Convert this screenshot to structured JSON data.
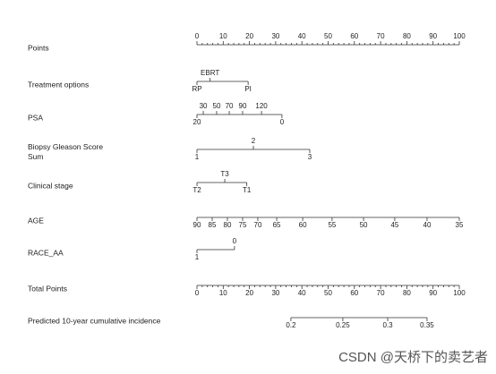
{
  "chart_data": {
    "type": "nomogram",
    "xlim": [
      0,
      100
    ],
    "axes": [
      {
        "label": [
          "Points"
        ],
        "label_side": "above",
        "ticks": [
          0,
          10,
          20,
          30,
          40,
          50,
          60,
          70,
          80,
          90,
          100
        ],
        "minor_divisions": 5
      },
      {
        "label": [
          "Treatment options"
        ],
        "label_side": "below",
        "ticks": [
          {
            "label": "RP",
            "points": 0
          },
          {
            "label": "EBRT",
            "points": 5,
            "side": "above"
          },
          {
            "label": "PI",
            "points": 19.5
          }
        ]
      },
      {
        "label": [
          "PSA"
        ],
        "label_side": "below",
        "ticks": [
          {
            "value": 20,
            "points": 0
          },
          {
            "value": 30,
            "points": 2.4,
            "side": "above"
          },
          {
            "value": 50,
            "points": 7.5,
            "side": "above"
          },
          {
            "value": 70,
            "points": 12.3,
            "side": "above"
          },
          {
            "value": 90,
            "points": 17.4,
            "side": "above"
          },
          {
            "value": 120,
            "points": 24.6,
            "side": "above"
          },
          {
            "value": 0,
            "points": 32.4
          }
        ]
      },
      {
        "label": [
          "Biopsy Gleason Score",
          "Sum"
        ],
        "label_side": "below",
        "ticks": [
          {
            "value": 1,
            "points": 0
          },
          {
            "value": 2,
            "points": 21.5,
            "side": "above"
          },
          {
            "value": 3,
            "points": 43
          }
        ]
      },
      {
        "label": [
          "Clinical stage"
        ],
        "label_side": "below",
        "ticks": [
          {
            "label": "T2",
            "points": 0
          },
          {
            "label": "T3",
            "points": 10.6,
            "side": "above"
          },
          {
            "label": "T1",
            "points": 19
          }
        ]
      },
      {
        "label": [
          "AGE"
        ],
        "label_side": "below",
        "ticks": [
          {
            "value": 90,
            "points": 0
          },
          {
            "value": 85,
            "points": 5.8
          },
          {
            "value": 80,
            "points": 11.6
          },
          {
            "value": 75,
            "points": 17.4
          },
          {
            "value": 70,
            "points": 23.2
          },
          {
            "value": 65,
            "points": 30.4
          },
          {
            "value": 60,
            "points": 40.3
          },
          {
            "value": 55,
            "points": 51.5
          },
          {
            "value": 50,
            "points": 63.5
          },
          {
            "value": 45,
            "points": 75.4
          },
          {
            "value": 40,
            "points": 87.7
          },
          {
            "value": 35,
            "points": 100
          }
        ]
      },
      {
        "label": [
          "RACE_AA"
        ],
        "label_side": "below",
        "ticks": [
          {
            "value": 1,
            "points": 0
          },
          {
            "value": 0,
            "points": 14.3,
            "side": "above"
          }
        ]
      },
      {
        "label": [
          "Total Points"
        ],
        "label_side": "below",
        "ticks": [
          0,
          10,
          20,
          30,
          40,
          50,
          60,
          70,
          80,
          90,
          100
        ],
        "minor_divisions": 5
      },
      {
        "label": [
          "Predicted 10-year cumulative incidence"
        ],
        "label_side": "below",
        "ticks": [
          {
            "value": 0.2,
            "points": 35.8
          },
          {
            "value": 0.25,
            "points": 55.6
          },
          {
            "value": 0.3,
            "points": 72.7
          },
          {
            "value": 0.35,
            "points": 87.7
          }
        ]
      }
    ],
    "watermark": "CSDN @天桥下的卖艺者"
  }
}
